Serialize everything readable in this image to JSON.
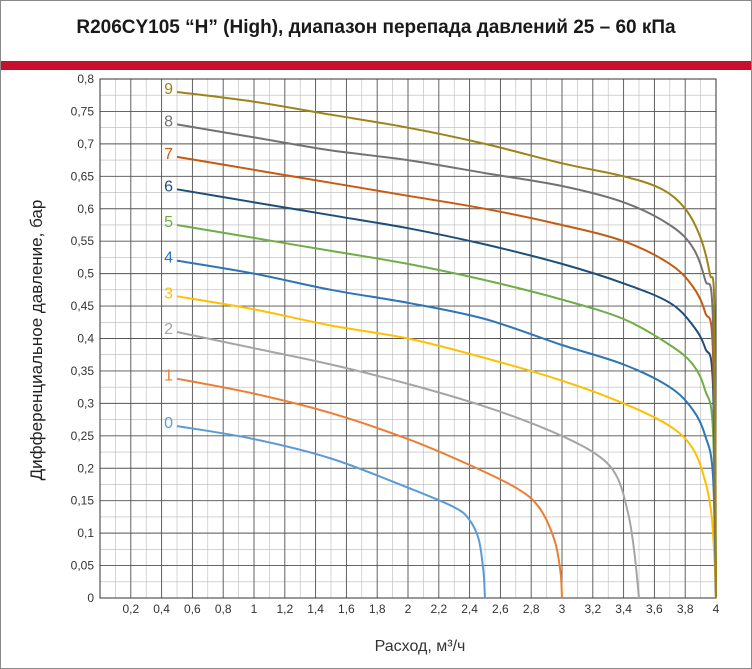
{
  "header": {
    "title": "R206CY105 “H” (High), диапазон перепада давлений 25 – 60 кПа",
    "accent_color": "#c8102e"
  },
  "chart_data": {
    "type": "line",
    "title": "R206CY105 “H” (High), диапазон перепада давлений 25 – 60 кПа",
    "xlabel": "Расход, м³/ч",
    "ylabel": "Дифференциальное давление, бар",
    "xlim": [
      0,
      4
    ],
    "ylim": [
      0,
      0.8
    ],
    "grid": true,
    "x_ticks": [
      "0,2",
      "0,4",
      "0,6",
      "0,8",
      "1",
      "1,2",
      "1,4",
      "1,6",
      "1,8",
      "2",
      "2,2",
      "2,4",
      "2,6",
      "2,8",
      "3",
      "3,2",
      "3,4",
      "3,6",
      "3,8",
      "4"
    ],
    "y_ticks": [
      "0",
      "0,05",
      "0,1",
      "0,15",
      "0,2",
      "0,25",
      "0,3",
      "0,35",
      "0,4",
      "0,45",
      "0,5",
      "0,55",
      "0,6",
      "0,65",
      "0,7",
      "0,75",
      "0,8"
    ],
    "series": [
      {
        "name": "0",
        "color": "#5b9bd5",
        "points": [
          [
            0.5,
            0.265
          ],
          [
            1.0,
            0.245
          ],
          [
            1.5,
            0.215
          ],
          [
            2.0,
            0.17
          ],
          [
            2.3,
            0.14
          ],
          [
            2.4,
            0.12
          ],
          [
            2.46,
            0.09
          ],
          [
            2.49,
            0.04
          ],
          [
            2.5,
            0.0
          ]
        ]
      },
      {
        "name": "1",
        "color": "#ed7d31",
        "points": [
          [
            0.5,
            0.338
          ],
          [
            1.0,
            0.315
          ],
          [
            1.5,
            0.285
          ],
          [
            2.0,
            0.245
          ],
          [
            2.4,
            0.205
          ],
          [
            2.7,
            0.17
          ],
          [
            2.85,
            0.14
          ],
          [
            2.95,
            0.09
          ],
          [
            2.99,
            0.04
          ],
          [
            3.0,
            0.0
          ]
        ]
      },
      {
        "name": "2",
        "color": "#a5a5a5",
        "points": [
          [
            0.5,
            0.41
          ],
          [
            1.0,
            0.385
          ],
          [
            1.5,
            0.36
          ],
          [
            2.0,
            0.33
          ],
          [
            2.5,
            0.295
          ],
          [
            2.9,
            0.26
          ],
          [
            3.2,
            0.225
          ],
          [
            3.35,
            0.19
          ],
          [
            3.43,
            0.13
          ],
          [
            3.47,
            0.07
          ],
          [
            3.5,
            0.0
          ]
        ]
      },
      {
        "name": "3",
        "color": "#ffc000",
        "points": [
          [
            0.5,
            0.465
          ],
          [
            1.0,
            0.445
          ],
          [
            1.5,
            0.42
          ],
          [
            2.0,
            0.4
          ],
          [
            2.5,
            0.37
          ],
          [
            3.0,
            0.335
          ],
          [
            3.4,
            0.3
          ],
          [
            3.7,
            0.265
          ],
          [
            3.85,
            0.23
          ],
          [
            3.93,
            0.18
          ],
          [
            3.97,
            0.13
          ],
          [
            3.99,
            0.06
          ],
          [
            4.0,
            0.0
          ]
        ]
      },
      {
        "name": "4",
        "color": "#2e75b6",
        "points": [
          [
            0.5,
            0.52
          ],
          [
            1.0,
            0.5
          ],
          [
            1.5,
            0.475
          ],
          [
            2.0,
            0.455
          ],
          [
            2.5,
            0.43
          ],
          [
            3.0,
            0.39
          ],
          [
            3.4,
            0.36
          ],
          [
            3.7,
            0.325
          ],
          [
            3.85,
            0.29
          ],
          [
            3.93,
            0.25
          ],
          [
            3.98,
            0.19
          ],
          [
            4.0,
            0.0
          ]
        ]
      },
      {
        "name": "5",
        "color": "#70ad47",
        "points": [
          [
            0.5,
            0.575
          ],
          [
            1.0,
            0.555
          ],
          [
            1.5,
            0.535
          ],
          [
            2.0,
            0.515
          ],
          [
            2.5,
            0.49
          ],
          [
            3.0,
            0.46
          ],
          [
            3.4,
            0.43
          ],
          [
            3.7,
            0.39
          ],
          [
            3.85,
            0.36
          ],
          [
            3.93,
            0.32
          ],
          [
            3.98,
            0.26
          ],
          [
            4.0,
            0.0
          ]
        ]
      },
      {
        "name": "6",
        "color": "#1f4e79",
        "points": [
          [
            0.5,
            0.63
          ],
          [
            1.0,
            0.61
          ],
          [
            1.5,
            0.59
          ],
          [
            2.0,
            0.57
          ],
          [
            2.5,
            0.545
          ],
          [
            3.0,
            0.515
          ],
          [
            3.4,
            0.485
          ],
          [
            3.7,
            0.455
          ],
          [
            3.85,
            0.42
          ],
          [
            3.93,
            0.385
          ],
          [
            3.98,
            0.33
          ],
          [
            4.0,
            0.0
          ]
        ]
      },
      {
        "name": "7",
        "color": "#c55a11",
        "points": [
          [
            0.5,
            0.68
          ],
          [
            1.0,
            0.66
          ],
          [
            1.5,
            0.64
          ],
          [
            2.0,
            0.62
          ],
          [
            2.5,
            0.6
          ],
          [
            3.0,
            0.575
          ],
          [
            3.4,
            0.55
          ],
          [
            3.7,
            0.515
          ],
          [
            3.85,
            0.48
          ],
          [
            3.93,
            0.44
          ],
          [
            3.98,
            0.38
          ],
          [
            4.0,
            0.0
          ]
        ]
      },
      {
        "name": "8",
        "color": "#767171",
        "points": [
          [
            0.5,
            0.73
          ],
          [
            1.0,
            0.71
          ],
          [
            1.5,
            0.69
          ],
          [
            2.0,
            0.675
          ],
          [
            2.5,
            0.655
          ],
          [
            3.0,
            0.635
          ],
          [
            3.4,
            0.61
          ],
          [
            3.7,
            0.575
          ],
          [
            3.85,
            0.54
          ],
          [
            3.93,
            0.49
          ],
          [
            3.98,
            0.43
          ],
          [
            4.0,
            0.0
          ]
        ]
      },
      {
        "name": "9",
        "color": "#9c8419",
        "points": [
          [
            0.5,
            0.78
          ],
          [
            1.0,
            0.765
          ],
          [
            1.5,
            0.745
          ],
          [
            2.0,
            0.725
          ],
          [
            2.5,
            0.7
          ],
          [
            3.0,
            0.67
          ],
          [
            3.4,
            0.65
          ],
          [
            3.65,
            0.63
          ],
          [
            3.8,
            0.6
          ],
          [
            3.9,
            0.555
          ],
          [
            3.96,
            0.5
          ],
          [
            3.99,
            0.44
          ],
          [
            4.0,
            0.0
          ]
        ]
      }
    ]
  }
}
